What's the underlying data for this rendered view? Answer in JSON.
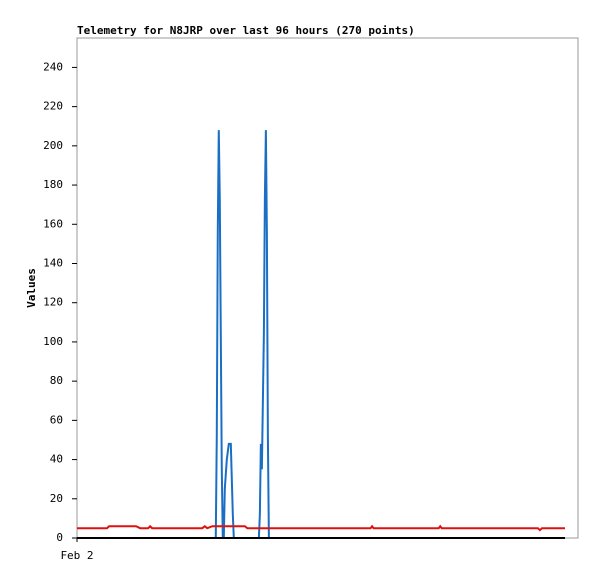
{
  "chart_data": {
    "type": "line",
    "title": "Telemetry for N8JRP over last 96 hours (270 points)",
    "y_label": "Values",
    "xlim": [
      0,
      100
    ],
    "xticks": [
      {
        "value": 0,
        "label": "Feb 2"
      }
    ],
    "ylim": [
      0,
      255
    ],
    "yticks": [
      0,
      20,
      40,
      60,
      80,
      100,
      120,
      140,
      160,
      180,
      200,
      220,
      240
    ],
    "grid": false,
    "series": [
      {
        "color": "#1a6fc4",
        "x": [
          0,
          27.7,
          27.9,
          28.1,
          28.3,
          28.5,
          28.7,
          28.9,
          29.1,
          29.3,
          29.5,
          29.9,
          30.3,
          30.7,
          31.1,
          31.3,
          36.3,
          36.5,
          36.7,
          36.9,
          37.3,
          37.5,
          37.7,
          37.9,
          38.1,
          38.3,
          97.4
        ],
        "values": [
          0,
          0,
          52,
          156,
          208,
          173,
          104,
          35,
          0,
          0,
          25,
          40,
          48,
          48,
          12,
          0,
          0,
          12,
          48,
          35,
          104,
          173,
          208,
          156,
          52,
          0,
          0
        ]
      },
      {
        "color": "#e01010",
        "x": [
          0,
          6,
          6.4,
          11.8,
          12.6,
          14.2,
          14.6,
          15,
          25,
          25.5,
          26,
          27,
          28,
          29,
          32,
          33.5,
          34,
          58.6,
          58.9,
          59.2,
          72.2,
          72.5,
          72.8,
          92,
          92.4,
          92.8,
          97.4
        ],
        "values": [
          5,
          5,
          6,
          6,
          5,
          5,
          6,
          5,
          5,
          6,
          5,
          6,
          6,
          6,
          6,
          6,
          5,
          5,
          6,
          5,
          5,
          6,
          5,
          5,
          4,
          5,
          5
        ]
      },
      {
        "color": "#000000",
        "x": [
          0,
          97.4
        ],
        "values": [
          0,
          0
        ]
      }
    ]
  }
}
